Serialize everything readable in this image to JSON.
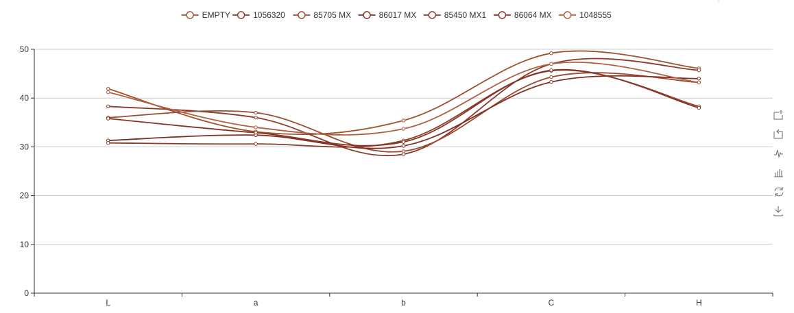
{
  "colors": {
    "series": [
      "#a0522d",
      "#8b3a2a",
      "#9a4b30",
      "#7f2f22",
      "#8e3b28",
      "#853526",
      "#b06040"
    ],
    "axis": "#333333",
    "grid": "#cccccc",
    "toolbox": "#666666"
  },
  "toolbox": [
    {
      "name": "zoom-icon"
    },
    {
      "name": "zoom-reset-icon"
    },
    {
      "name": "line-chart-icon"
    },
    {
      "name": "bar-chart-icon"
    },
    {
      "name": "restore-icon"
    },
    {
      "name": "download-icon"
    }
  ],
  "chart_data": {
    "type": "line",
    "smooth": true,
    "categories": [
      "L",
      "a",
      "b",
      "C",
      "H"
    ],
    "ylim": [
      0,
      50
    ],
    "yticks": [
      0,
      10,
      20,
      30,
      40,
      50
    ],
    "grid": true,
    "legend_position": "top-center",
    "series": [
      {
        "name": "EMPTY",
        "values": [
          41.9,
          33.1,
          35.4,
          49.2,
          46.1
        ]
      },
      {
        "name": "1056320",
        "values": [
          38.3,
          36.0,
          28.5,
          47.0,
          45.7
        ]
      },
      {
        "name": "85705 MX",
        "values": [
          36.0,
          37.0,
          29.1,
          44.3,
          43.2
        ]
      },
      {
        "name": "86017 MX",
        "values": [
          31.3,
          32.4,
          30.2,
          43.3,
          44.0
        ]
      },
      {
        "name": "85450 MX1",
        "values": [
          30.8,
          30.6,
          31.3,
          45.6,
          38.3
        ]
      },
      {
        "name": "86064 MX",
        "values": [
          35.8,
          32.9,
          31.0,
          45.7,
          38.0
        ]
      },
      {
        "name": "1048555",
        "values": [
          41.2,
          34.0,
          33.7,
          47.0,
          43.2
        ]
      }
    ]
  }
}
